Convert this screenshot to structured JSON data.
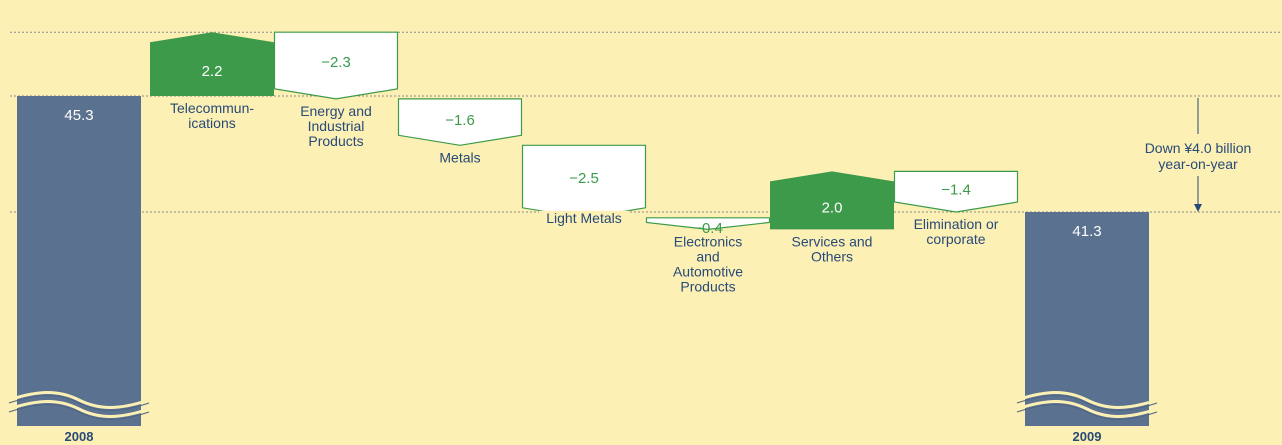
{
  "colors": {
    "background": "#fdf0b4",
    "total_bar": "#5a7190",
    "positive": "#3c9a4a",
    "negative_outline": "#3c9a4a",
    "text_dark": "#274a79",
    "gridline": "#8a8a8a"
  },
  "chart_data": {
    "type": "bar",
    "subtype": "waterfall",
    "title": "",
    "xlabel": "",
    "ylabel": "",
    "unit": "¥ billion",
    "axis_break": true,
    "ylim": [
      38.5,
      52.4
    ],
    "gridlines": [
      47.5,
      45.3,
      41.3
    ],
    "start": {
      "year_label": "2008",
      "value": 45.3,
      "value_label": "45.3"
    },
    "end": {
      "year_label": "2009",
      "value": 41.3,
      "value_label": "41.3"
    },
    "steps": [
      {
        "label_lines": [
          "Telecommun-",
          "ications"
        ],
        "value": 2.2,
        "value_label": "2.2"
      },
      {
        "label_lines": [
          "Energy and",
          "Industrial",
          "Products"
        ],
        "value": -2.3,
        "value_label": "−2.3"
      },
      {
        "label_lines": [
          "Metals"
        ],
        "value": -1.6,
        "value_label": "−1.6"
      },
      {
        "label_lines": [
          "Light Metals"
        ],
        "value": -2.5,
        "value_label": "−2.5"
      },
      {
        "label_lines": [
          "Electronics",
          "and",
          "Automotive",
          "Products"
        ],
        "value": -0.4,
        "value_label": "−0.4"
      },
      {
        "label_lines": [
          "Services and",
          "Others"
        ],
        "value": 2.0,
        "value_label": "2.0"
      },
      {
        "label_lines": [
          "Elimination or",
          "corporate"
        ],
        "value": -1.4,
        "value_label": "−1.4"
      }
    ],
    "annotation": {
      "lines": [
        "Down ¥4.0 billion",
        "year-on-year"
      ]
    }
  }
}
